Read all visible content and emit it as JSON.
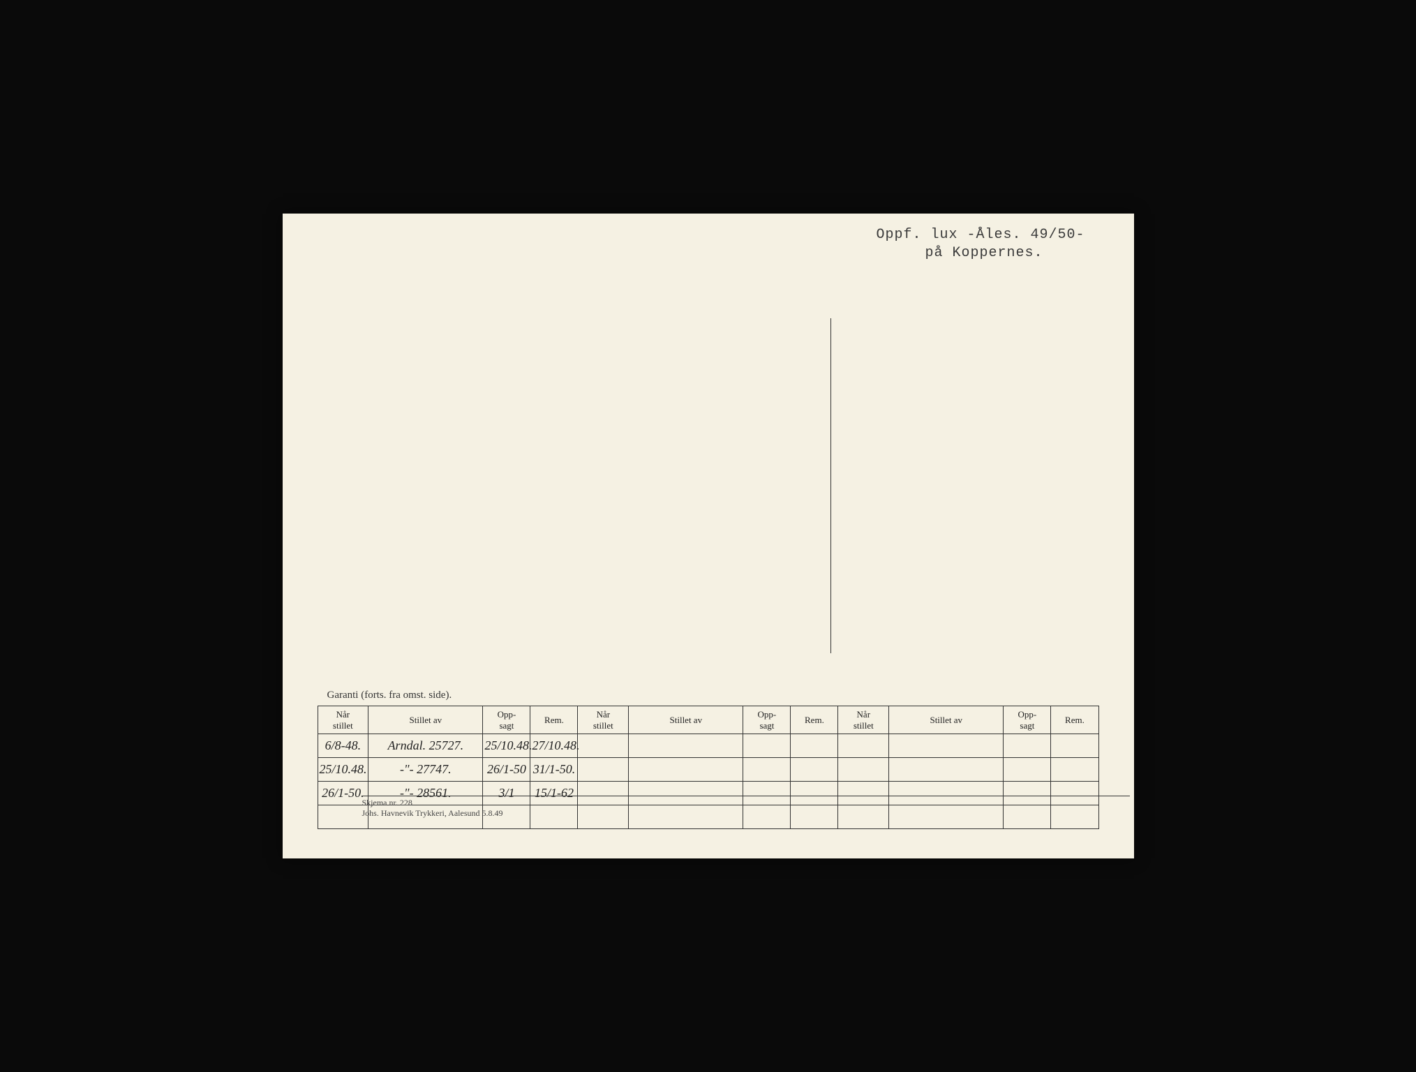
{
  "header": {
    "line1": "Oppf. lux -Åles. 49/50-",
    "line2": "på Koppernes."
  },
  "table": {
    "caption": "Garanti (forts. fra omst. side).",
    "columns": [
      {
        "label": "Når\nstillet",
        "class": "col-nar"
      },
      {
        "label": "Stillet av",
        "class": "col-stillet"
      },
      {
        "label": "Opp-\nsagt",
        "class": "col-opp"
      },
      {
        "label": "Rem.",
        "class": "col-rem"
      },
      {
        "label": "Når\nstillet",
        "class": "col-nar"
      },
      {
        "label": "Stillet av",
        "class": "col-stillet"
      },
      {
        "label": "Opp-\nsagt",
        "class": "col-opp"
      },
      {
        "label": "Rem.",
        "class": "col-rem"
      },
      {
        "label": "Når\nstillet",
        "class": "col-nar"
      },
      {
        "label": "Stillet av",
        "class": "col-stillet"
      },
      {
        "label": "Opp-\nsagt",
        "class": "col-opp"
      },
      {
        "label": "Rem.",
        "class": "col-rem"
      }
    ],
    "rows": [
      {
        "cells": [
          {
            "text": "6/8-48.",
            "ink": "ink-blue"
          },
          {
            "text": "Arndal. 25727.",
            "ink": "ink-blue"
          },
          {
            "text": "25/10.48.",
            "ink": "ink-blue"
          },
          {
            "text": "27/10.48.",
            "ink": "ink-blue"
          },
          {
            "text": "",
            "ink": ""
          },
          {
            "text": "",
            "ink": ""
          },
          {
            "text": "",
            "ink": ""
          },
          {
            "text": "",
            "ink": ""
          },
          {
            "text": "",
            "ink": ""
          },
          {
            "text": "",
            "ink": ""
          },
          {
            "text": "",
            "ink": ""
          },
          {
            "text": "",
            "ink": ""
          }
        ]
      },
      {
        "cells": [
          {
            "text": "25/10.48.",
            "ink": "ink-blue"
          },
          {
            "text": "-\"-  27747.",
            "ink": "ink-blue"
          },
          {
            "text": "26/1-50",
            "ink": "ink-blue"
          },
          {
            "text": "31/1-50.",
            "ink": "ink-blue"
          },
          {
            "text": "",
            "ink": ""
          },
          {
            "text": "",
            "ink": ""
          },
          {
            "text": "",
            "ink": ""
          },
          {
            "text": "",
            "ink": ""
          },
          {
            "text": "",
            "ink": ""
          },
          {
            "text": "",
            "ink": ""
          },
          {
            "text": "",
            "ink": ""
          },
          {
            "text": "",
            "ink": ""
          }
        ]
      },
      {
        "cells": [
          {
            "text": "26/1-50.",
            "ink": "ink-blue"
          },
          {
            "text": "-\"-  28561.",
            "ink": "ink-blue"
          },
          {
            "text": "3/1",
            "ink": "ink-red"
          },
          {
            "text": "15/1-62",
            "ink": "ink-red"
          },
          {
            "text": "",
            "ink": ""
          },
          {
            "text": "",
            "ink": ""
          },
          {
            "text": "",
            "ink": ""
          },
          {
            "text": "",
            "ink": ""
          },
          {
            "text": "",
            "ink": ""
          },
          {
            "text": "",
            "ink": ""
          },
          {
            "text": "",
            "ink": ""
          },
          {
            "text": "",
            "ink": ""
          }
        ]
      },
      {
        "cells": [
          {
            "text": "",
            "ink": ""
          },
          {
            "text": "",
            "ink": ""
          },
          {
            "text": "",
            "ink": ""
          },
          {
            "text": "",
            "ink": ""
          },
          {
            "text": "",
            "ink": ""
          },
          {
            "text": "",
            "ink": ""
          },
          {
            "text": "",
            "ink": ""
          },
          {
            "text": "",
            "ink": ""
          },
          {
            "text": "",
            "ink": ""
          },
          {
            "text": "",
            "ink": ""
          },
          {
            "text": "",
            "ink": ""
          },
          {
            "text": "",
            "ink": ""
          }
        ]
      }
    ]
  },
  "footer": {
    "line1": "Skjema nr. 228",
    "line2": "Johs. Havnevik Trykkeri, Aalesund 5.8.49"
  },
  "colors": {
    "paper": "#f5f1e3",
    "ink_blue": "#1a2a6b",
    "ink_red": "#b01818",
    "print_black": "#333333"
  }
}
